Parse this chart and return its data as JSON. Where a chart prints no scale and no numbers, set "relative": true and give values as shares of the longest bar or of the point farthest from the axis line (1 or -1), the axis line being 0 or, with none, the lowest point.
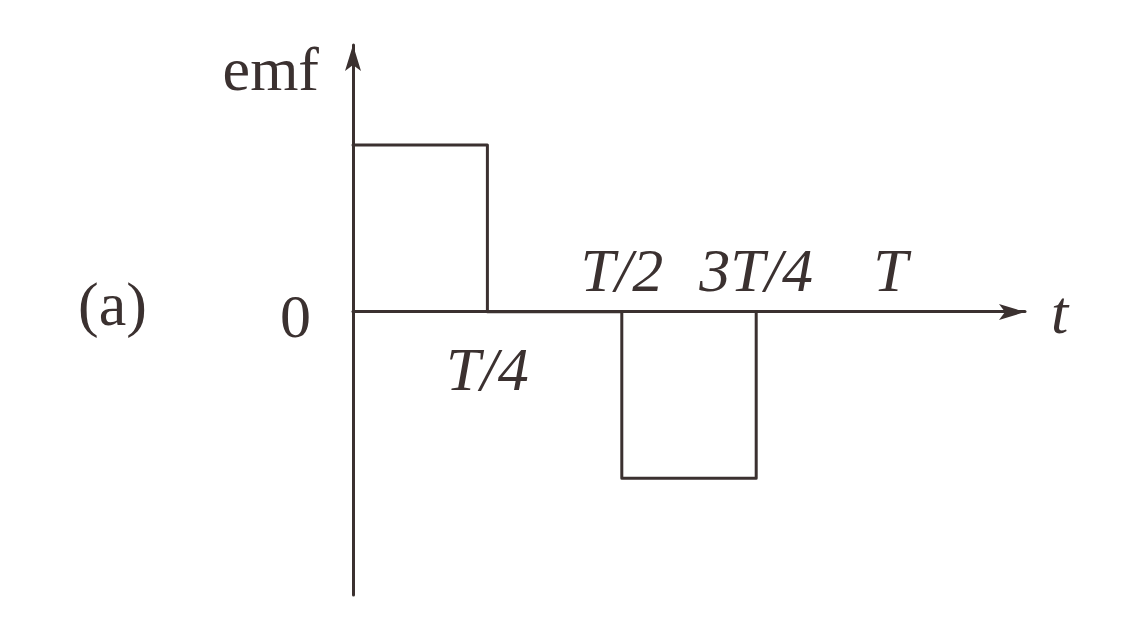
{
  "chart_data": {
    "type": "step",
    "ylabel": "emf",
    "xlabel": "t",
    "annotations": [
      "(a)",
      "0"
    ],
    "categories": [
      null,
      "T/4",
      "T/2",
      "3T/4",
      "T",
      null
    ],
    "values": [
      1,
      0,
      -1,
      0,
      null,
      null
    ],
    "relative": true,
    "color": "#3b3130",
    "marker": "none"
  }
}
